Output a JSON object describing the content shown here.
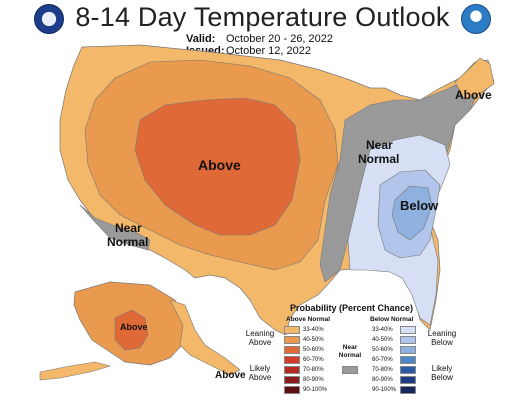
{
  "title": "8-14 Day Temperature Outlook",
  "valid_label": "Valid:",
  "valid_value": "October 20 - 26, 2022",
  "issued_label": "Issued:",
  "issued_value": "October 12, 2022",
  "logos": {
    "left": "NOAA-CPC",
    "right": "NOAA"
  },
  "map_labels": {
    "above_center": "Above",
    "above_northeast": "Above",
    "near_normal_west_1": "Near",
    "near_normal_west_2": "Normal",
    "near_normal_east_1": "Near",
    "near_normal_east_2": "Normal",
    "below_southeast": "Below",
    "above_alaska": "Above",
    "above_aleutians": "Above"
  },
  "legend": {
    "title": "Probability (Percent Chance)",
    "above_header": "Above Normal",
    "below_header": "Below Normal",
    "near_header_1": "Near",
    "near_header_2": "Normal",
    "leaning_above_1": "Leaning",
    "leaning_above_2": "Above",
    "likely_above_1": "Likely",
    "likely_above_2": "Above",
    "leaning_below_1": "Leaning",
    "leaning_below_2": "Below",
    "likely_below_1": "Likely",
    "likely_below_2": "Below",
    "above_rows": [
      "33-40%",
      "40-50%",
      "50-60%",
      "60-70%",
      "70-80%",
      "80-90%",
      "90-100%"
    ],
    "below_rows": [
      "33-40%",
      "40-50%",
      "50-60%",
      "60-70%",
      "70-80%",
      "80-90%",
      "90-100%"
    ],
    "above_colors": [
      "#f4b86a",
      "#ea9a4f",
      "#e06a37",
      "#d33c2a",
      "#b72a23",
      "#8b1a1c",
      "#5e0f12"
    ],
    "below_colors": [
      "#d6dff3",
      "#b1c6ea",
      "#8eb1e0",
      "#4f87c7",
      "#2a5aa6",
      "#1f3c86",
      "#17255a"
    ],
    "near_color": "#9a9a9a"
  }
}
